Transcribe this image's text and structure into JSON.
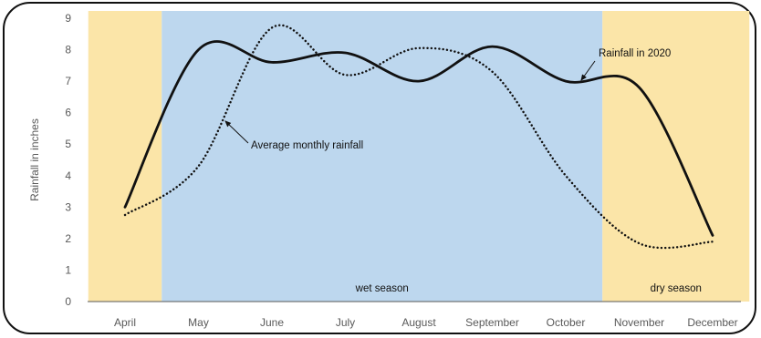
{
  "chart_data": {
    "type": "line",
    "title": "",
    "xlabel": "",
    "ylabel": "Rainfall in inches",
    "ylim": [
      0,
      9
    ],
    "y_ticks": [
      0,
      1,
      2,
      3,
      4,
      5,
      6,
      7,
      8,
      9
    ],
    "grid": false,
    "categories": [
      "April",
      "May",
      "June",
      "July",
      "August",
      "September",
      "October",
      "November",
      "December"
    ],
    "series": [
      {
        "name": "Rainfall in 2020",
        "style": "solid",
        "color": "#111111",
        "values": [
          3.0,
          8.0,
          7.6,
          7.9,
          7.0,
          8.1,
          7.0,
          6.8,
          2.1
        ]
      },
      {
        "name": "Average monthly rainfall",
        "style": "dotted",
        "color": "#111111",
        "values": [
          2.75,
          4.3,
          8.7,
          7.2,
          8.05,
          7.3,
          4.0,
          1.85,
          1.9
        ]
      }
    ],
    "bands": [
      {
        "label": "",
        "from": -0.5,
        "to": 0.5,
        "color": "#fbe5a8"
      },
      {
        "label": "wet season",
        "from": 0.5,
        "to": 6.5,
        "color": "#bdd7ee"
      },
      {
        "label": "dry season",
        "from": 6.5,
        "to": 8.5,
        "color": "#fbe5a8"
      }
    ],
    "annotations": [
      {
        "text": "Rainfall in 2020",
        "series": 0
      },
      {
        "text": "Average monthly rainfall",
        "series": 1
      }
    ]
  }
}
